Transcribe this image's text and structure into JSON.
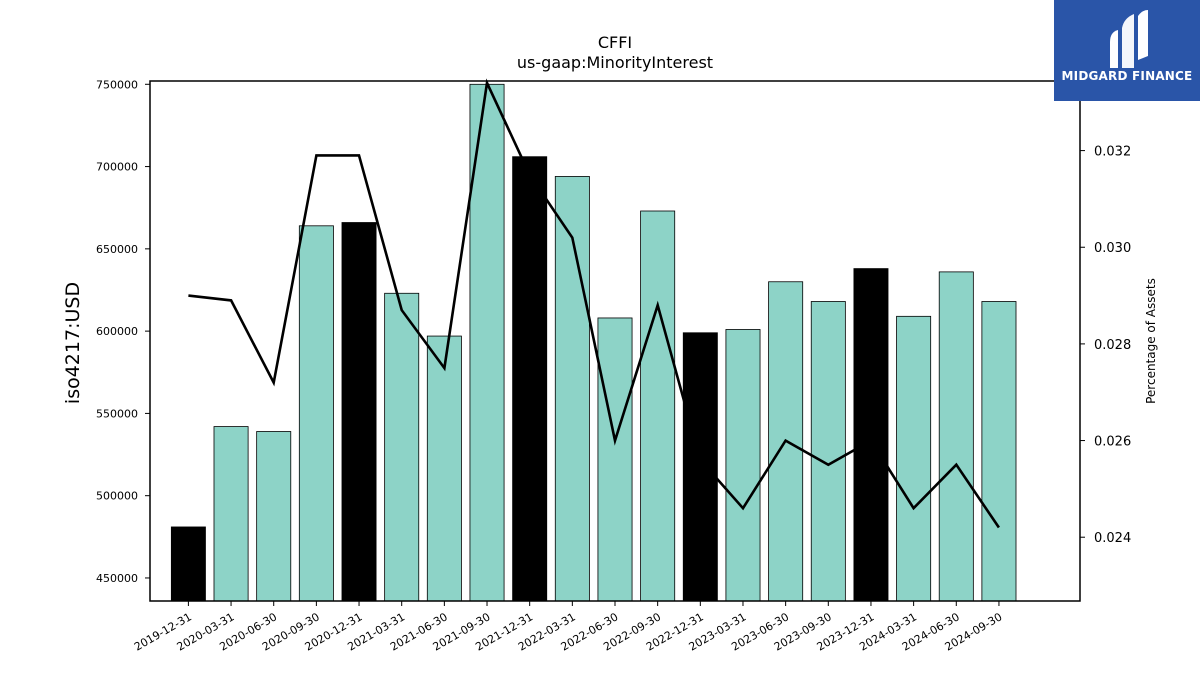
{
  "chart_data": {
    "type": "bar",
    "title": "CFFI",
    "subtitle": "us-gaap:MinorityInterest",
    "ylabel": "iso4217:USD",
    "y2label": "Percentage of Assets",
    "ylim": [
      436000,
      752000
    ],
    "y2lim": [
      0.02268,
      0.03344
    ],
    "yticks": [
      450000,
      500000,
      550000,
      600000,
      650000,
      700000,
      750000
    ],
    "y2ticks": [
      0.024,
      0.026,
      0.028,
      0.03,
      0.032
    ],
    "categories": [
      "2019-12-31",
      "2020-03-31",
      "2020-06-30",
      "2020-09-30",
      "2020-12-31",
      "2021-03-31",
      "2021-06-30",
      "2021-09-30",
      "2021-12-31",
      "2022-03-31",
      "2022-06-30",
      "2022-09-30",
      "2022-12-31",
      "2023-03-31",
      "2023-06-30",
      "2023-09-30",
      "2023-12-31",
      "2024-03-31",
      "2024-06-30",
      "2024-09-30"
    ],
    "series": [
      {
        "kind": "bar",
        "values": [
          481000,
          542000,
          539000,
          664000,
          666000,
          623000,
          597000,
          750000,
          706000,
          694000,
          608000,
          673000,
          599000,
          601000,
          630000,
          618000,
          638000,
          609000,
          636000,
          618000
        ]
      },
      {
        "kind": "line",
        "axis": "right",
        "values": [
          0.029,
          0.0289,
          0.0272,
          0.0319,
          0.0319,
          0.0287,
          0.0275,
          0.0334,
          0.0315,
          0.0302,
          0.026,
          0.0288,
          0.0256,
          0.0246,
          0.026,
          0.0255,
          0.026,
          0.0246,
          0.0255,
          0.0242
        ]
      }
    ],
    "highlight_categories": [
      "2019-12-31",
      "2020-12-31",
      "2021-12-31",
      "2022-12-31",
      "2023-12-31"
    ],
    "colors": {
      "bar": "#8dd3c7",
      "highlight": "#000000",
      "line": "#000000",
      "logo_bg": "#2a55a8"
    }
  },
  "logo": {
    "text": "MIDGARD FINANCE"
  }
}
